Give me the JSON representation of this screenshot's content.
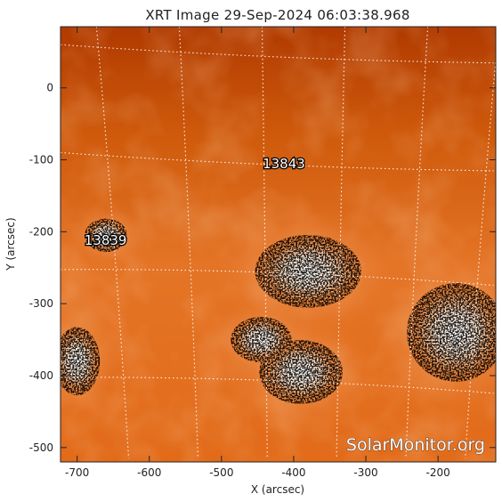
{
  "chart_data": {
    "type": "heatmap",
    "title": "XRT Image 29-Sep-2024 06:03:38.968",
    "xlabel": "X (arcsec)",
    "ylabel": "Y (arcsec)",
    "xlim": [
      -723,
      -120
    ],
    "ylim": [
      -520,
      85
    ],
    "xticks": [
      -700,
      -600,
      -500,
      -400,
      -300,
      -200
    ],
    "yticks": [
      -500,
      -400,
      -300,
      -200,
      -100,
      0
    ],
    "grid": true,
    "colormap": [
      "#a33200",
      "#c94800",
      "#e06a18",
      "#f08e4a",
      "#f8be90",
      "#ffffff"
    ],
    "active_regions": [
      {
        "label": "13843",
        "x": -443,
        "y": -112
      },
      {
        "label": "13839",
        "x": -690,
        "y": -218
      }
    ],
    "bright_regions": [
      {
        "x": -380,
        "y": -255,
        "rx": 70,
        "ry": 48
      },
      {
        "x": -390,
        "y": -395,
        "rx": 55,
        "ry": 42
      },
      {
        "x": -445,
        "y": -350,
        "rx": 40,
        "ry": 30
      },
      {
        "x": -175,
        "y": -340,
        "rx": 65,
        "ry": 65
      },
      {
        "x": -700,
        "y": -380,
        "rx": 30,
        "ry": 45
      },
      {
        "x": -660,
        "y": -205,
        "rx": 28,
        "ry": 22
      }
    ],
    "watermark": "SolarMonitor.org"
  }
}
